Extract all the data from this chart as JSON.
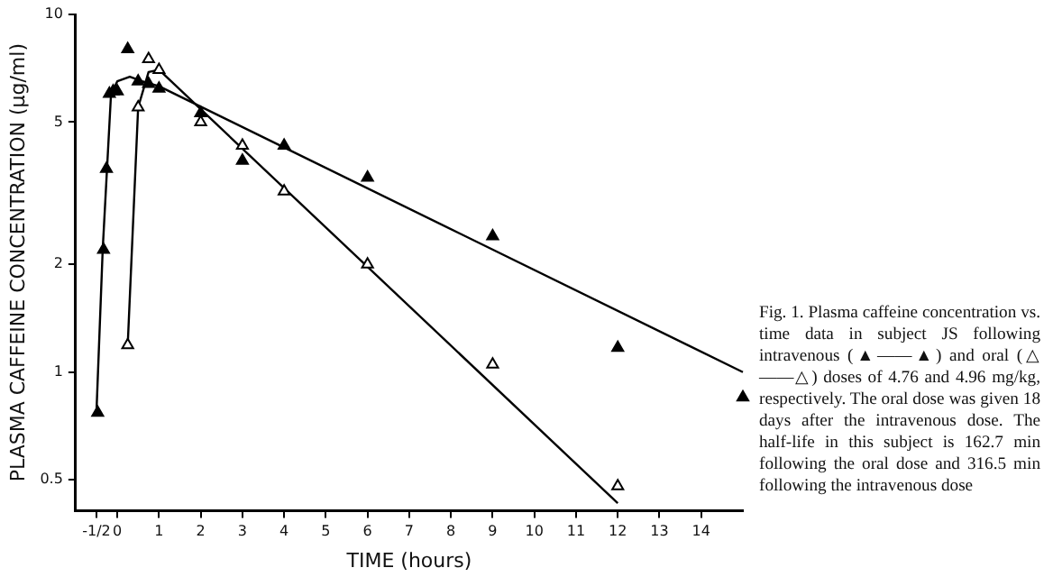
{
  "chart_data": {
    "type": "scatter",
    "xlabel": "TIME (hours)",
    "ylabel": "PLASMA CAFFEINE CONCENTRATION (μg/ml)",
    "log": "y",
    "xlim": [
      -1,
      15
    ],
    "ylim": [
      0.41,
      10
    ],
    "xticks": [
      {
        "value": -0.5,
        "label": "-1/2"
      },
      0,
      1,
      2,
      3,
      4,
      5,
      6,
      7,
      8,
      9,
      10,
      11,
      12,
      13,
      14
    ],
    "yticks": [
      0.5,
      1,
      2,
      5,
      10
    ],
    "grid": false,
    "legend": false,
    "marker": "triangle",
    "series": [
      {
        "color": "#000000",
        "x": [
          -0.47,
          -0.33,
          -0.26,
          -0.19,
          -0.1,
          0,
          0.25,
          0.5,
          0.75,
          1,
          2,
          3,
          4,
          6,
          9,
          12,
          15
        ],
        "values": [
          0.77,
          2.2,
          3.7,
          6.0,
          6.1,
          6.1,
          8.0,
          6.5,
          6.4,
          6.2,
          5.3,
          3.9,
          4.3,
          3.5,
          2.4,
          1.17,
          0.85
        ]
      },
      {
        "color": "#000000",
        "x": [
          0.25,
          0.5,
          0.75,
          1,
          2,
          3,
          4,
          6,
          9,
          12
        ],
        "values": [
          1.19,
          5.5,
          7.5,
          7.0,
          5.0,
          4.3,
          3.2,
          2.0,
          1.05,
          0.48
        ]
      },
      {
        "type": "line",
        "color": "#000000",
        "marker": "none",
        "x": [
          -0.5,
          -0.35,
          -0.15,
          0,
          0.3,
          0.6,
          1,
          15
        ],
        "values": [
          0.77,
          2.2,
          6.0,
          6.5,
          6.7,
          6.5,
          6.3,
          1.0
        ]
      },
      {
        "type": "line",
        "color": "#000000",
        "marker": "none",
        "x": [
          0.25,
          0.5,
          0.75,
          1,
          12
        ],
        "values": [
          1.19,
          5.5,
          6.9,
          7.0,
          0.43
        ]
      }
    ],
    "annotations": [
      "Fig. 1. Plasma caffeine concentration vs. time data in subject JS following intravenous (▲——▲) and oral (△——△) doses of 4.76 and 4.96 mg/kg, respectively. The oral dose was given 18 days after the intravenous dose. The half-life in this subject is 162.7 min following the oral dose and 316.5 min following the intravenous dose"
    ]
  }
}
